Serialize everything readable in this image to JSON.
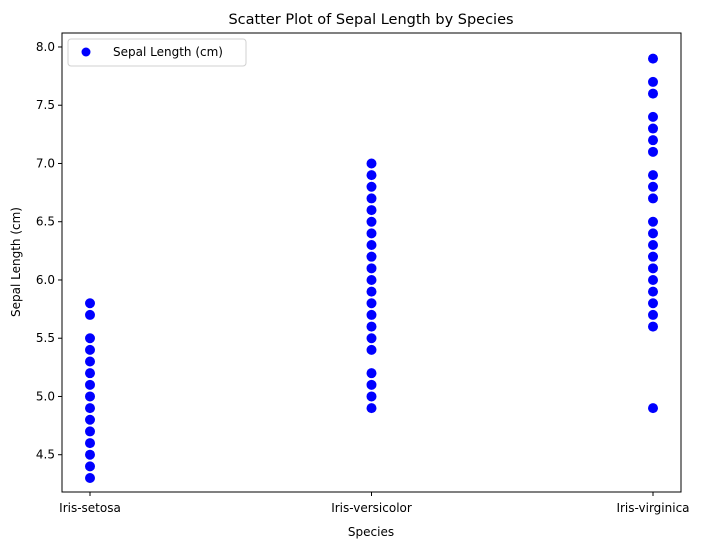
{
  "chart_data": {
    "type": "scatter",
    "title": "Scatter Plot of Sepal Length by Species",
    "xlabel": "Species",
    "ylabel": "Sepal Length (cm)",
    "categories": [
      "Iris-setosa",
      "Iris-versicolor",
      "Iris-virginica"
    ],
    "ylim": [
      4.18,
      8.12
    ],
    "yticks": [
      "4.5",
      "5.0",
      "5.5",
      "6.0",
      "6.5",
      "7.0",
      "7.5",
      "8.0"
    ],
    "grid": false,
    "legend_position": "top-left",
    "color": "#0000ff",
    "series": [
      {
        "name": "Sepal Length (cm)",
        "points": [
          {
            "x": "Iris-setosa",
            "y": [
              4.3,
              4.4,
              4.5,
              4.6,
              4.7,
              4.8,
              4.9,
              5.0,
              5.1,
              5.2,
              5.3,
              5.4,
              5.5,
              5.7,
              5.8
            ]
          },
          {
            "x": "Iris-versicolor",
            "y": [
              4.9,
              5.0,
              5.1,
              5.2,
              5.4,
              5.5,
              5.6,
              5.7,
              5.8,
              5.9,
              6.0,
              6.1,
              6.2,
              6.3,
              6.4,
              6.5,
              6.6,
              6.7,
              6.8,
              6.9,
              7.0
            ]
          },
          {
            "x": "Iris-virginica",
            "y": [
              4.9,
              5.6,
              5.7,
              5.8,
              5.9,
              6.0,
              6.1,
              6.2,
              6.3,
              6.4,
              6.5,
              6.7,
              6.8,
              6.9,
              7.1,
              7.2,
              7.3,
              7.4,
              7.6,
              7.7,
              7.9
            ]
          }
        ]
      }
    ]
  }
}
